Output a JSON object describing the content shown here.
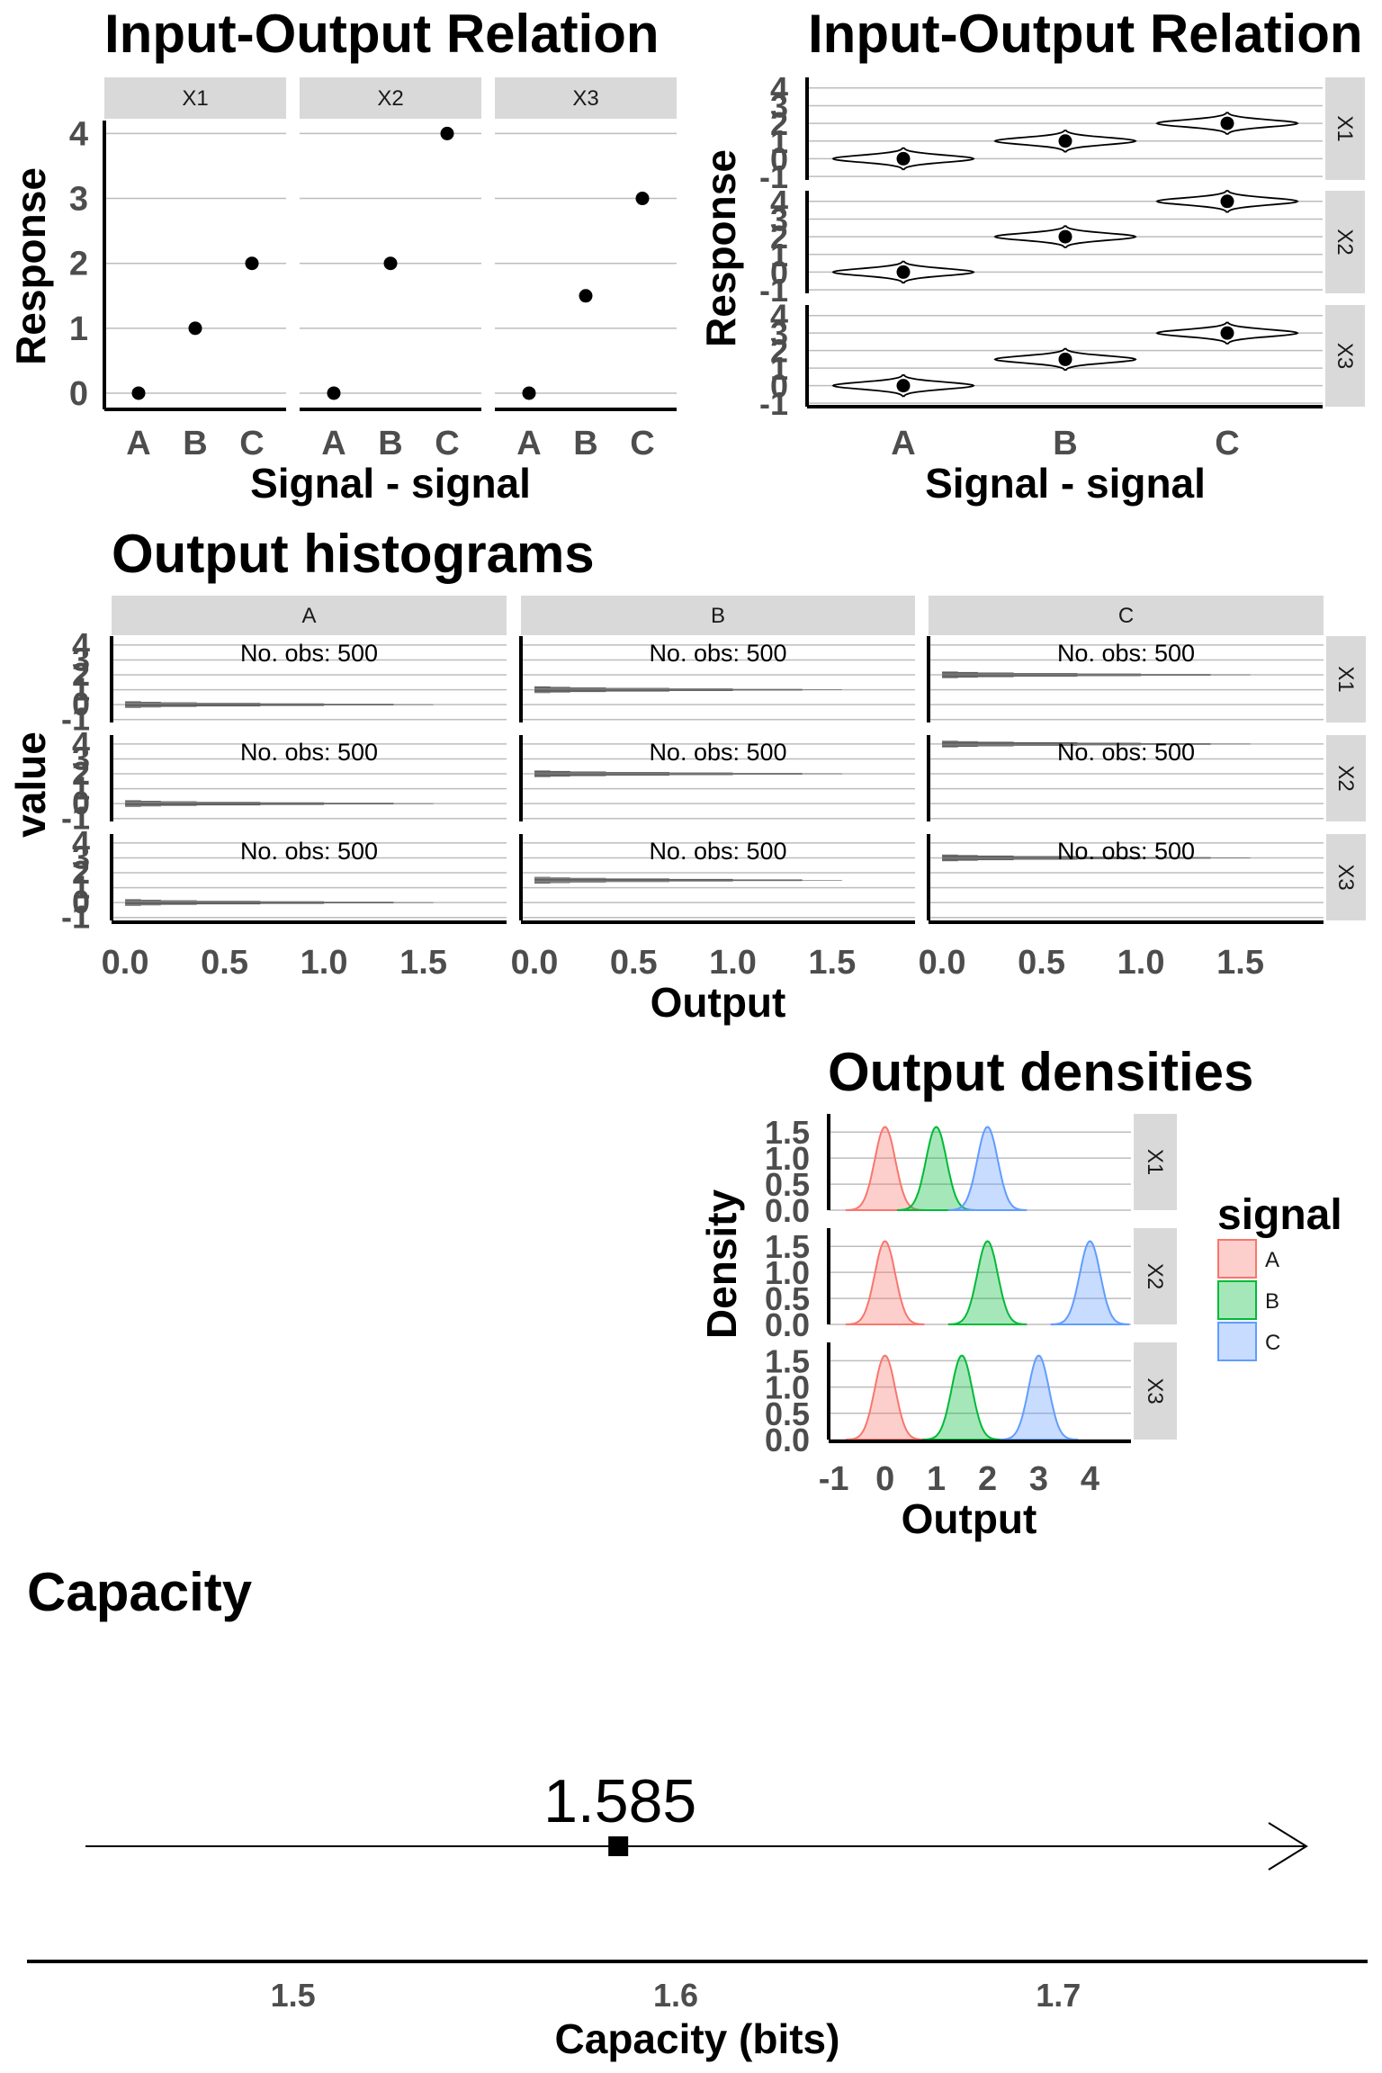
{
  "colors": {
    "A": "#F8766D",
    "B": "#00BA38",
    "C": "#619CFF",
    "strip": "#d9d9d9",
    "grid": "#bdbdbd",
    "ink": "#000000",
    "bars": "#595959"
  },
  "chart_data": [
    {
      "id": "io_points",
      "type": "scatter",
      "title": "Input-Output Relation",
      "xlabel": "Signal - signal",
      "ylabel": "Response",
      "facets": [
        "X1",
        "X2",
        "X3"
      ],
      "categories": [
        "A",
        "B",
        "C"
      ],
      "yticks": [
        "0",
        "1",
        "2",
        "3",
        "4"
      ],
      "ylim": [
        -0.25,
        4.2
      ],
      "series": [
        {
          "facet": "X1",
          "values": [
            0,
            1,
            2
          ]
        },
        {
          "facet": "X2",
          "values": [
            0,
            2,
            4
          ]
        },
        {
          "facet": "X3",
          "values": [
            0,
            1.5,
            3
          ]
        }
      ],
      "grid": true
    },
    {
      "id": "io_violin",
      "type": "violin",
      "title": "Input-Output Relation",
      "xlabel": "Signal - signal",
      "ylabel": "Response",
      "facets": [
        "X1",
        "X2",
        "X3"
      ],
      "categories": [
        "A",
        "B",
        "C"
      ],
      "yticks": [
        "-1",
        "0",
        "1",
        "2",
        "3",
        "4"
      ],
      "ylim": [
        -1.2,
        4.6
      ],
      "series": [
        {
          "facet": "X1",
          "values": [
            0,
            1,
            2
          ]
        },
        {
          "facet": "X2",
          "values": [
            0,
            2,
            4
          ]
        },
        {
          "facet": "X3",
          "values": [
            0,
            1.5,
            3
          ]
        }
      ],
      "spread_sd": 0.2,
      "grid": true
    },
    {
      "id": "histograms",
      "type": "bar",
      "title": "Output histograms",
      "xlabel": "Output",
      "ylabel": "value",
      "col_facets": [
        "A",
        "B",
        "C"
      ],
      "row_facets": [
        "X1",
        "X2",
        "X3"
      ],
      "xticks": [
        "0.0",
        "0.5",
        "1.0",
        "1.5"
      ],
      "yticks": [
        "-1",
        "0",
        "1",
        "2",
        "3",
        "4"
      ],
      "xlim": [
        -0.05,
        1.9
      ],
      "ylim": [
        -1.2,
        4.6
      ],
      "annotation": "No. obs: 500",
      "centers": [
        {
          "row": "X1",
          "values": [
            0,
            1,
            2
          ]
        },
        {
          "row": "X2",
          "values": [
            0,
            2,
            4
          ]
        },
        {
          "row": "X3",
          "values": [
            0,
            1.5,
            3
          ]
        }
      ],
      "bin_profile": [
        1.55,
        1.35,
        1.0,
        0.68,
        0.36,
        0.18,
        0.08
      ],
      "grid": true
    },
    {
      "id": "densities",
      "type": "area",
      "title": "Output densities",
      "xlabel": "Output",
      "ylabel": "Density",
      "facets": [
        "X1",
        "X2",
        "X3"
      ],
      "xticks": [
        -1,
        0,
        1,
        2,
        3,
        4
      ],
      "yticks": [
        "0.0",
        "0.5",
        "1.0",
        "1.5"
      ],
      "xlim": [
        -1.1,
        4.8
      ],
      "ylim": [
        0,
        1.85
      ],
      "legend": {
        "title": "signal",
        "entries": [
          "A",
          "B",
          "C"
        ],
        "position": "right"
      },
      "series": [
        {
          "facet": "X1",
          "means": [
            0,
            1,
            2
          ]
        },
        {
          "facet": "X2",
          "means": [
            0,
            2,
            4
          ]
        },
        {
          "facet": "X3",
          "means": [
            0,
            1.5,
            3
          ]
        }
      ],
      "sd": 0.2,
      "peak": 1.6,
      "grid": true
    },
    {
      "id": "capacity",
      "type": "scatter",
      "title": "Capacity",
      "xlabel": "Capacity (bits)",
      "xticks": [
        1.5,
        1.6,
        1.7
      ],
      "xlim": [
        1.4305,
        1.7808
      ],
      "value": 1.585,
      "value_label": "1.585"
    }
  ]
}
